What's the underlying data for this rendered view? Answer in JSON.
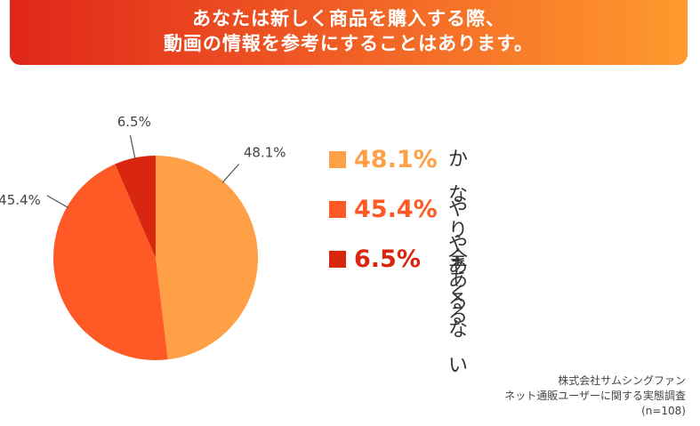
{
  "header": {
    "line1": "あなたは新しく商品を購入する際、",
    "line2": "動画の情報を参考にすることはあります。"
  },
  "colors": {
    "header_start": "#e0261a",
    "header_end": "#ff9a2e",
    "slice_1": "#ffa047",
    "slice_2": "#ff5a26",
    "slice_3": "#d9260f"
  },
  "chart_data": {
    "type": "pie",
    "categories": [
      "かなりある",
      "ややある",
      "全くない"
    ],
    "values": [
      48.1,
      45.4,
      6.5
    ],
    "value_labels": [
      "48.1%",
      "45.4%",
      "6.5%"
    ],
    "outer_labels": [
      "48.1%",
      "45.4%",
      "6.5%"
    ],
    "title": "あなたは新しく商品を購入する際、動画の情報を参考にすることはあります。",
    "legend_position": "right"
  },
  "legend": [
    {
      "pct": "48.1%",
      "label": "かなりある"
    },
    {
      "pct": "45.4%",
      "label": "ややある"
    },
    {
      "pct": "6.5%",
      "label": "全くない"
    }
  ],
  "source": {
    "line1": "株式会社サムシングファン",
    "line2": "ネット通販ユーザーに関する実態調査",
    "line3": "(n=108)"
  }
}
